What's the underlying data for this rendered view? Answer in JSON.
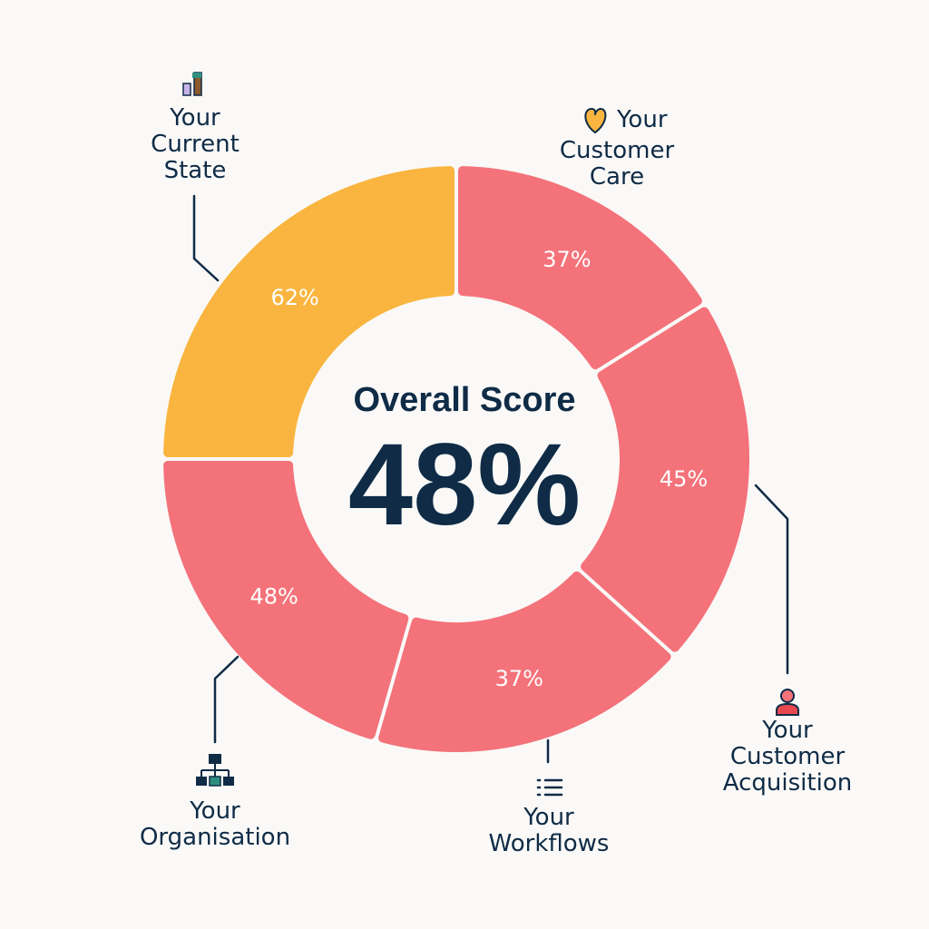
{
  "chart_data": {
    "type": "pie",
    "title": "Overall Score",
    "overall_value": "48%",
    "categories": [
      "Your Current State",
      "Your Customer Care",
      "Your Customer Acquisition",
      "Your Workflows",
      "Your Organisation"
    ],
    "values": [
      62,
      37,
      45,
      37,
      48
    ],
    "value_labels": [
      "62%",
      "37%",
      "45%",
      "37%",
      "48%"
    ],
    "segment_colors": [
      "#f9b53f",
      "#f4727a",
      "#f4727a",
      "#f4727a",
      "#f4727a"
    ],
    "icons": [
      "bar-chart-icon",
      "heart-icon",
      "person-icon",
      "list-icon",
      "org-chart-icon"
    ]
  },
  "labels": {
    "current_state": "Your\nCurrent\nState",
    "customer_care_first": "Your",
    "customer_care_rest": "Customer\nCare",
    "customer_acquisition": "Your\nCustomer\nAcquisition",
    "workflows": "Your\nWorkflows",
    "organisation": "Your\nOrganisation"
  },
  "colors": {
    "navy": "#0f2b46",
    "highlight": "#f9b53f",
    "segment": "#f4727a",
    "background": "#faf9f7"
  }
}
